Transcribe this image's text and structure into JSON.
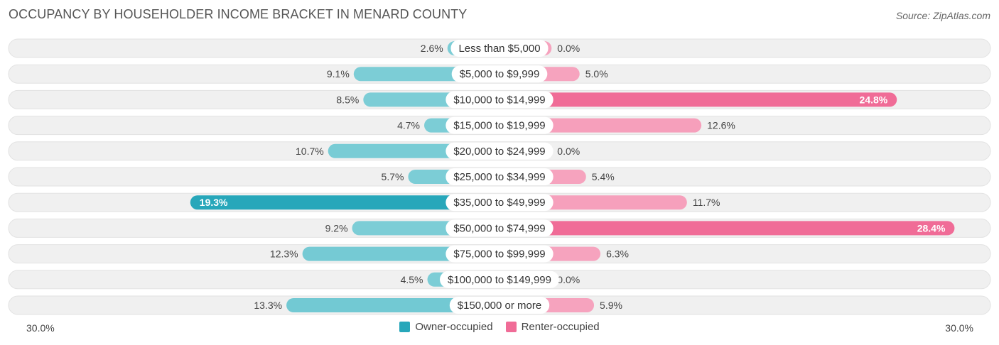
{
  "header": {
    "title": "OCCUPANCY BY HOUSEHOLDER INCOME BRACKET IN MENARD COUNTY",
    "source": "Source: ZipAtlas.com"
  },
  "axis": {
    "left_label": "30.0%",
    "right_label": "30.0%"
  },
  "legend": {
    "owner": "Owner-occupied",
    "renter": "Renter-occupied"
  },
  "colors": {
    "owner_light": "#7ccdd6",
    "owner_dark": "#27a7ba",
    "renter_light": "#f6a3be",
    "renter_dark": "#f06c97",
    "row_bg": "#f0f0f0"
  },
  "chart_data": {
    "type": "bar",
    "orientation": "horizontal-diverging",
    "title": "OCCUPANCY BY HOUSEHOLDER INCOME BRACKET IN MENARD COUNTY",
    "xlim": [
      -30,
      30
    ],
    "categories": [
      "Less than $5,000",
      "$5,000 to $9,999",
      "$10,000 to $14,999",
      "$15,000 to $19,999",
      "$20,000 to $24,999",
      "$25,000 to $34,999",
      "$35,000 to $49,999",
      "$50,000 to $74,999",
      "$75,000 to $99,999",
      "$100,000 to $149,999",
      "$150,000 or more"
    ],
    "series": [
      {
        "name": "Owner-occupied",
        "values": [
          2.6,
          9.1,
          8.5,
          4.7,
          10.7,
          5.7,
          19.3,
          9.2,
          12.3,
          4.5,
          13.3
        ],
        "labels": [
          "2.6%",
          "9.1%",
          "8.5%",
          "4.7%",
          "10.7%",
          "5.7%",
          "19.3%",
          "9.2%",
          "12.3%",
          "4.5%",
          "13.3%"
        ]
      },
      {
        "name": "Renter-occupied",
        "values": [
          0.0,
          5.0,
          24.8,
          12.6,
          0.0,
          5.4,
          11.7,
          28.4,
          6.3,
          0.0,
          5.9
        ],
        "labels": [
          "0.0%",
          "5.0%",
          "24.8%",
          "12.6%",
          "0.0%",
          "5.4%",
          "11.7%",
          "28.4%",
          "6.3%",
          "0.0%",
          "5.9%"
        ]
      }
    ]
  }
}
